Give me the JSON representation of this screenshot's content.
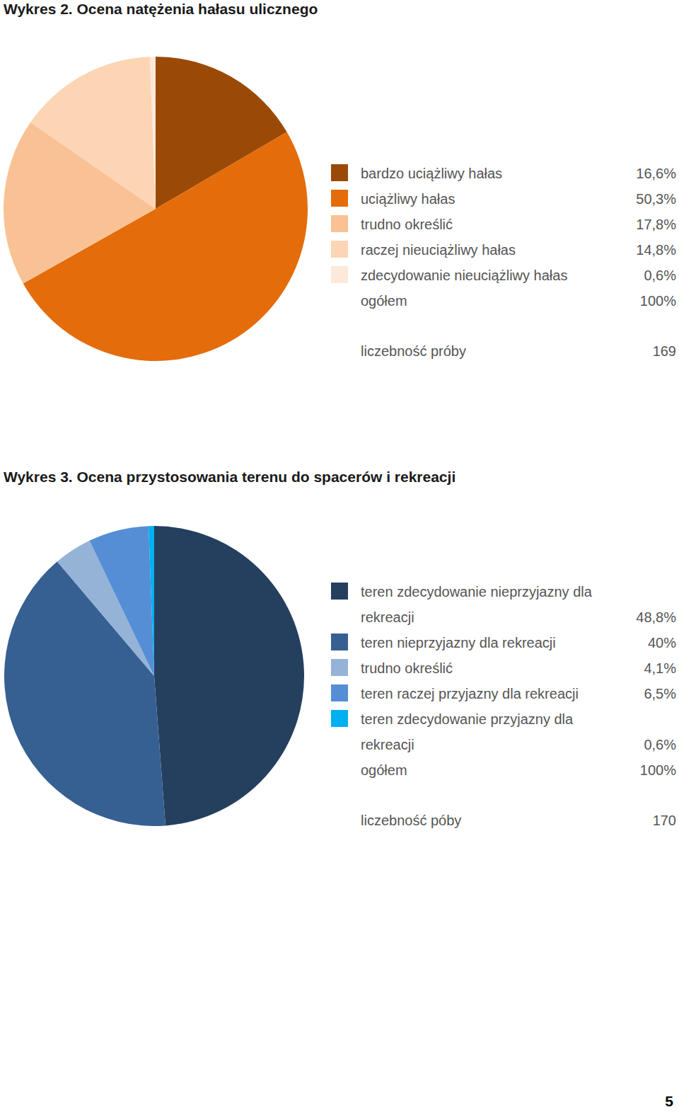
{
  "chart_data": [
    {
      "type": "pie",
      "title": "Wykres 2. Ocena natężenia hałasu ulicznego",
      "categories": [
        "bardzo uciążliwy hałas",
        "uciążliwy hałas",
        "trudno określić",
        "raczej nieuciążliwy hałas",
        "zdecydowanie nieuciążliwy hałas"
      ],
      "values": [
        16.6,
        50.3,
        17.8,
        14.8,
        0.6
      ],
      "value_labels": [
        "16,6%",
        "50,3%",
        "17,8%",
        "14,8%",
        "0,6%"
      ],
      "colors": [
        "#9a4a06",
        "#e46c0a",
        "#f9c294",
        "#fcd5b5",
        "#fde9d9"
      ],
      "total": {
        "label": "ogółem",
        "value": 100,
        "value_label": "100%"
      },
      "sample_size": {
        "label": "liczebność próby",
        "value": 169
      }
    },
    {
      "type": "pie",
      "title": "Wykres 3. Ocena przystosowania terenu do spacerów i rekreacji",
      "categories": [
        "teren zdecydowanie nieprzyjazny dla rekreacji",
        "teren nieprzyjazny dla rekreacji",
        "trudno określić",
        "teren raczej przyjazny dla rekreacji",
        "teren zdecydowanie przyjazny dla rekreacji"
      ],
      "values": [
        48.8,
        40,
        4.1,
        6.5,
        0.6
      ],
      "value_labels": [
        "48,8%",
        "40%",
        "4,1%",
        "6,5%",
        "0,6%"
      ],
      "colors": [
        "#253f5f",
        "#366092",
        "#95b3d7",
        "#558ed5",
        "#00b0f0"
      ],
      "total": {
        "label": "ogółem",
        "value": 100,
        "value_label": "100%"
      },
      "sample_size": {
        "label": "liczebność póby",
        "value": 170
      }
    }
  ],
  "page_number": 5
}
